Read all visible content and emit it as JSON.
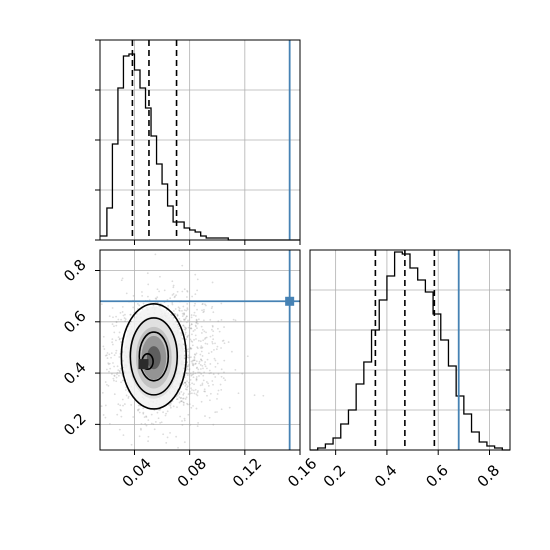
{
  "chart_data": [
    {
      "type": "histogram",
      "variable_index": 0,
      "xlim": [
        0.015,
        0.16
      ],
      "ylim": [
        0,
        1.0
      ],
      "bins": [
        0.016,
        0.02,
        0.024,
        0.028,
        0.032,
        0.036,
        0.04,
        0.044,
        0.048,
        0.052,
        0.056,
        0.06,
        0.064,
        0.068,
        0.072,
        0.076,
        0.08,
        0.084,
        0.088,
        0.092,
        0.096,
        0.1,
        0.104,
        0.108,
        0.112,
        0.116,
        0.12,
        0.124,
        0.128,
        0.132
      ],
      "heights": [
        0.02,
        0.16,
        0.48,
        0.76,
        0.92,
        0.93,
        0.85,
        0.76,
        0.66,
        0.52,
        0.38,
        0.28,
        0.17,
        0.09,
        0.09,
        0.06,
        0.05,
        0.04,
        0.02,
        0.01,
        0.01,
        0.01,
        0.01,
        0.0,
        0.0,
        0.0,
        0.0,
        0.0,
        0.0,
        0.0
      ],
      "quantiles": [
        0.0385,
        0.0505,
        0.0705
      ],
      "truth": 0.1525,
      "grid": true
    },
    {
      "type": "histogram",
      "variable_index": 1,
      "xlim": [
        0.1,
        0.88
      ],
      "ylim": [
        0,
        1.0
      ],
      "bins": [
        0.1,
        0.13,
        0.16,
        0.19,
        0.22,
        0.25,
        0.28,
        0.31,
        0.34,
        0.37,
        0.4,
        0.43,
        0.46,
        0.49,
        0.52,
        0.55,
        0.58,
        0.61,
        0.64,
        0.67,
        0.7,
        0.73,
        0.76,
        0.79,
        0.82,
        0.85
      ],
      "heights": [
        0.0,
        0.01,
        0.03,
        0.06,
        0.13,
        0.2,
        0.33,
        0.44,
        0.6,
        0.75,
        0.87,
        0.99,
        0.98,
        0.91,
        0.85,
        0.79,
        0.68,
        0.55,
        0.42,
        0.27,
        0.18,
        0.09,
        0.04,
        0.02,
        0.01,
        0.0
      ],
      "quantiles": [
        0.355,
        0.47,
        0.585
      ],
      "truth": 0.68,
      "grid": true,
      "xlabel_ticks": [
        "0.2",
        "0.4",
        "0.6",
        "0.8"
      ]
    },
    {
      "type": "2d-density",
      "variable_x": 0,
      "variable_y": 1,
      "xlim": [
        0.015,
        0.16
      ],
      "ylim": [
        0.1,
        0.88
      ],
      "xticks": [
        0.04,
        0.08,
        0.12,
        0.16
      ],
      "yticks": [
        0.2,
        0.4,
        0.6,
        0.8
      ],
      "xtick_labels": [
        "0.04",
        "0.08",
        "0.12",
        "0.16"
      ],
      "ytick_labels": [
        "0.2",
        "0.4",
        "0.6",
        "0.8"
      ],
      "peak": [
        0.0465,
        0.435
      ],
      "truth": [
        0.1525,
        0.68
      ],
      "grid": true
    }
  ],
  "colors": {
    "truth": "#4682b4",
    "hist_line": "#000000",
    "quantile": "#000000",
    "grid": "#b0b0b0",
    "density_dark": "#3a3a3a",
    "density_light": "#f0f0f0",
    "scatter": "#9a9a9a"
  },
  "axes_labels": {
    "hist0_xticks": [
      "",
      "",
      "",
      ""
    ],
    "hist0_yticks": [
      "",
      "",
      "",
      ""
    ]
  }
}
